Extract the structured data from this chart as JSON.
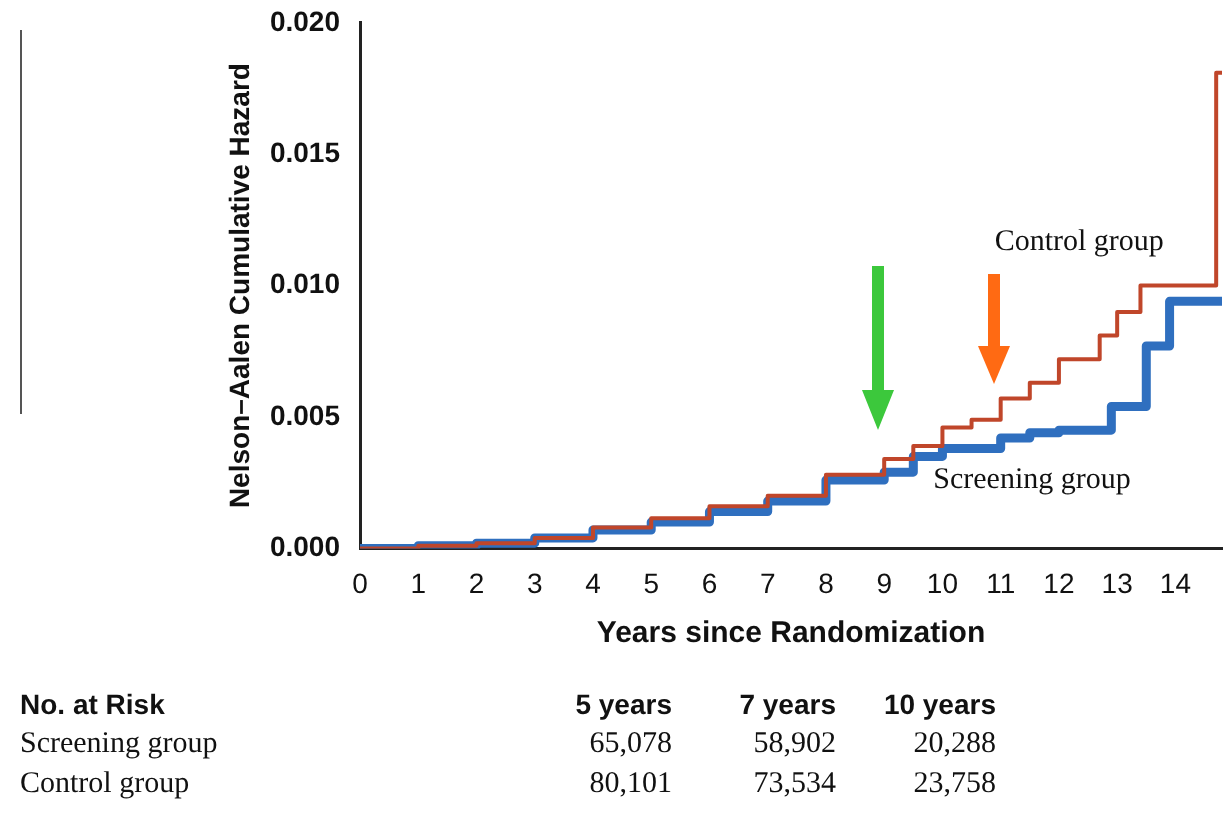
{
  "chart_data": {
    "type": "step",
    "xlabel": "Years since Randomization",
    "ylabel": "Nelson–Aalen Cumulative Hazard",
    "xlim": [
      0,
      14.8
    ],
    "xticks": [
      0,
      1,
      2,
      3,
      4,
      5,
      6,
      7,
      8,
      9,
      10,
      11,
      12,
      13,
      14
    ],
    "ylim": [
      0,
      0.02
    ],
    "yticks": [
      {
        "value": 0,
        "label": "0.000"
      },
      {
        "value": 0.005,
        "label": "0.005"
      },
      {
        "value": 0.01,
        "label": "0.010"
      },
      {
        "value": 0.015,
        "label": "0.015"
      },
      {
        "value": 0.02,
        "label": "0.020"
      }
    ],
    "grid": false,
    "legend": false,
    "marker": "none",
    "line_style": "solid",
    "series": [
      {
        "name": "Control group",
        "color": "#c0462a",
        "x": [
          0,
          1,
          2,
          3,
          4,
          5,
          6,
          7,
          8,
          9,
          9.5,
          10,
          10.5,
          11,
          11.5,
          12,
          12.7,
          13,
          13.4,
          14.7,
          14.8
        ],
        "values": [
          0,
          0.0001,
          0.0002,
          0.0004,
          0.0008,
          0.00115,
          0.0016,
          0.002,
          0.0028,
          0.0034,
          0.0039,
          0.0046,
          0.0049,
          0.0057,
          0.0063,
          0.0072,
          0.0081,
          0.009,
          0.01,
          0.0181,
          0.0181
        ]
      },
      {
        "name": "Screening group",
        "color": "#2f6fbf",
        "x": [
          0,
          1,
          2,
          3,
          4,
          5,
          6,
          7,
          8,
          9,
          9.5,
          10,
          11,
          11.5,
          12,
          12.9,
          13.5,
          13.9,
          14.8
        ],
        "values": [
          0,
          0.0001,
          0.0002,
          0.0004,
          0.0007,
          0.001,
          0.0014,
          0.0018,
          0.0026,
          0.0029,
          0.0035,
          0.0038,
          0.0042,
          0.0044,
          0.0045,
          0.0054,
          0.0077,
          0.0094,
          0.0094
        ]
      }
    ],
    "annotations": [
      "No. at Risk",
      "5 years",
      "7 years",
      "10 years",
      "Screening group",
      "65,078",
      "58,902",
      "20,288",
      "Control group",
      "80,101",
      "73,534",
      "23,758"
    ]
  }
}
